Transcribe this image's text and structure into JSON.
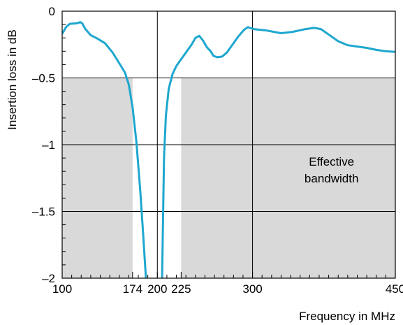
{
  "chart_data": {
    "type": "line",
    "title": "",
    "xlabel": "Frequency in MHz",
    "ylabel": "Insertion loss in dB",
    "xlim": [
      100,
      450
    ],
    "ylim": [
      -2,
      0
    ],
    "x_ticks": [
      100,
      174,
      200,
      225,
      300,
      450
    ],
    "x_tick_labels": [
      "100",
      "174",
      "200",
      "225",
      "300",
      "450"
    ],
    "y_ticks": [
      0,
      -0.5,
      -1,
      -1.5,
      -2
    ],
    "y_tick_labels": [
      "0",
      "–0.5",
      "–1",
      "–1.5",
      "–2"
    ],
    "x_gridlines": [
      200,
      300
    ],
    "y_gridlines": [
      -0.5,
      -1,
      -1.5
    ],
    "line_color": "#1ea7cf",
    "shade_color": "#d9d9d9",
    "shaded_bands": [
      {
        "x": [
          100,
          174
        ],
        "y": [
          -2,
          -0.5
        ]
      },
      {
        "x": [
          225,
          450
        ],
        "y": [
          -2,
          -0.5
        ]
      }
    ],
    "annotation": {
      "lines": [
        "Effective",
        "bandwidth"
      ],
      "x": 383,
      "y": -1.2
    },
    "series": [
      {
        "segments": [
          [
            [
              100,
              -0.17
            ],
            [
              104,
              -0.12
            ],
            [
              108,
              -0.095
            ],
            [
              113,
              -0.092
            ],
            [
              116,
              -0.09
            ],
            [
              119,
              -0.082
            ],
            [
              121,
              -0.09
            ],
            [
              124,
              -0.13
            ],
            [
              130,
              -0.18
            ],
            [
              137,
              -0.205
            ],
            [
              145,
              -0.24
            ],
            [
              153,
              -0.31
            ],
            [
              160,
              -0.39
            ],
            [
              166,
              -0.46
            ],
            [
              170,
              -0.55
            ],
            [
              174,
              -0.72
            ],
            [
              178,
              -0.98
            ],
            [
              182,
              -1.34
            ],
            [
              185,
              -1.66
            ],
            [
              188,
              -2.0
            ]
          ],
          [
            [
              205,
              -2.0
            ],
            [
              206,
              -1.55
            ],
            [
              207,
              -1.1
            ],
            [
              209,
              -0.78
            ],
            [
              212,
              -0.58
            ],
            [
              216,
              -0.47
            ],
            [
              220,
              -0.41
            ],
            [
              225,
              -0.36
            ],
            [
              230,
              -0.31
            ],
            [
              236,
              -0.25
            ],
            [
              240,
              -0.2
            ],
            [
              244,
              -0.185
            ],
            [
              248,
              -0.22
            ],
            [
              252,
              -0.27
            ],
            [
              256,
              -0.3
            ],
            [
              259,
              -0.335
            ],
            [
              263,
              -0.345
            ],
            [
              268,
              -0.34
            ],
            [
              273,
              -0.31
            ],
            [
              279,
              -0.25
            ],
            [
              285,
              -0.19
            ],
            [
              291,
              -0.14
            ],
            [
              295,
              -0.12
            ],
            [
              302,
              -0.135
            ],
            [
              315,
              -0.145
            ],
            [
              330,
              -0.165
            ],
            [
              342,
              -0.155
            ],
            [
              355,
              -0.135
            ],
            [
              365,
              -0.125
            ],
            [
              372,
              -0.135
            ],
            [
              380,
              -0.175
            ],
            [
              390,
              -0.225
            ],
            [
              400,
              -0.255
            ],
            [
              410,
              -0.265
            ],
            [
              420,
              -0.275
            ],
            [
              430,
              -0.29
            ],
            [
              440,
              -0.3
            ],
            [
              450,
              -0.305
            ]
          ]
        ]
      }
    ]
  }
}
